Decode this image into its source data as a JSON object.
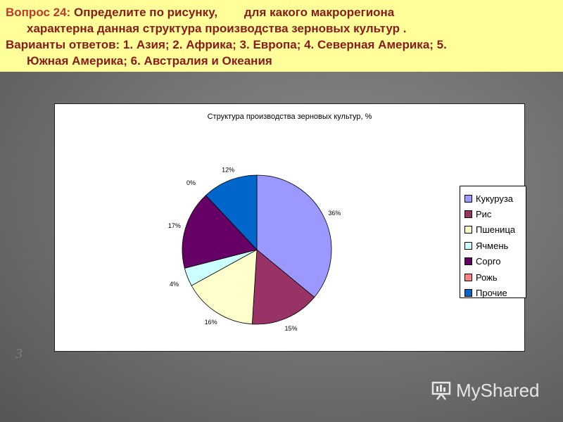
{
  "question": {
    "label": "Вопрос 24:",
    "text_line1": "Определите по рисунку,        для какого макрорегиона",
    "text_line2": "характерна данная структура производства зерновых культур .",
    "answers_line1": "Варианты ответов: 1. Азия; 2. Африка; 3. Европа; 4. Северная Америка; 5.",
    "answers_line2": "Южная Америка; 6. Австралия и Океания"
  },
  "colors": {
    "question_bg": "#ffff99",
    "question_text": "#8b1a1a",
    "slide_bg": "#777777"
  },
  "chart_data": {
    "type": "pie",
    "title": "Структура производства зерновых культур, %",
    "legend_position": "right",
    "slices": [
      {
        "label": "Кукуруза",
        "value": 36,
        "value_label": "36%",
        "color": "#9999ff"
      },
      {
        "label": "Рис",
        "value": 15,
        "value_label": "15%",
        "color": "#993366"
      },
      {
        "label": "Пшеница",
        "value": 16,
        "value_label": "16%",
        "color": "#ffffcc"
      },
      {
        "label": "Ячмень",
        "value": 4,
        "value_label": "4%",
        "color": "#ccffff"
      },
      {
        "label": "Сорго",
        "value": 17,
        "value_label": "17%",
        "color": "#660066"
      },
      {
        "label": "Рожь",
        "value": 0,
        "value_label": "0%",
        "color": "#ff8080"
      },
      {
        "label": "Прочие",
        "value": 12,
        "value_label": "12%",
        "color": "#0066cc"
      }
    ]
  },
  "watermark": {
    "text": "MyShared",
    "icon": "presentation-board-icon"
  },
  "decoration": {
    "slide_number_glyph": "3"
  }
}
